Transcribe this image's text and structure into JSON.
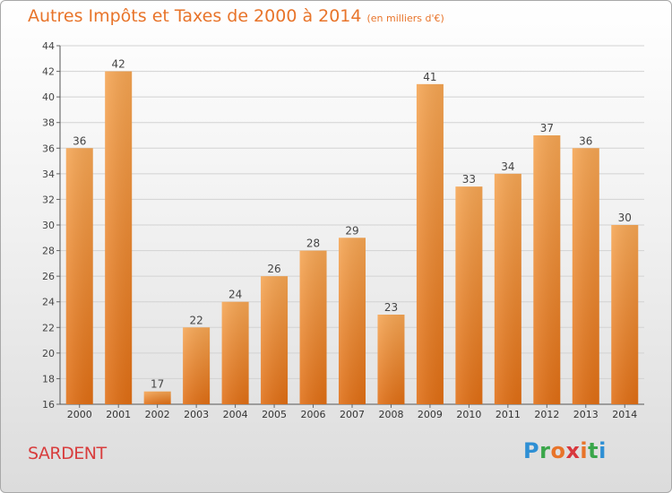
{
  "header": {
    "title": "Autres Impôts et Taxes de 2000 à 2014",
    "unit_note": "(en milliers d'€)"
  },
  "footer": {
    "place": "SARDENT",
    "logo_letters": [
      "P",
      "r",
      "o",
      "x",
      "i",
      "t",
      "i"
    ],
    "logo_colors": [
      "#2e8fd4",
      "#3aa64a",
      "#e8742a",
      "#d8373d",
      "#e8742a",
      "#3aa64a",
      "#2e8fd4"
    ]
  },
  "colors": {
    "bar": "#f0923a",
    "title": "#e8742a",
    "place": "#d83d3d"
  },
  "chart_data": {
    "type": "bar",
    "categories": [
      "2000",
      "2001",
      "2002",
      "2003",
      "2004",
      "2005",
      "2006",
      "2007",
      "2008",
      "2009",
      "2010",
      "2011",
      "2012",
      "2013",
      "2014"
    ],
    "values": [
      36,
      42,
      17,
      22,
      24,
      26,
      28,
      29,
      23,
      41,
      33,
      34,
      37,
      36,
      30
    ],
    "data_labels": [
      "36",
      "42",
      "17",
      "22",
      "24",
      "26",
      "28",
      "29",
      "23",
      "41",
      "33",
      "34",
      "37",
      "36",
      "30"
    ],
    "ylim": [
      16,
      44
    ],
    "yticks": [
      "16",
      "18",
      "20",
      "22",
      "24",
      "26",
      "28",
      "30",
      "32",
      "34",
      "36",
      "38",
      "40",
      "42",
      "44"
    ],
    "grid": true,
    "xlabel": "",
    "ylabel": ""
  }
}
